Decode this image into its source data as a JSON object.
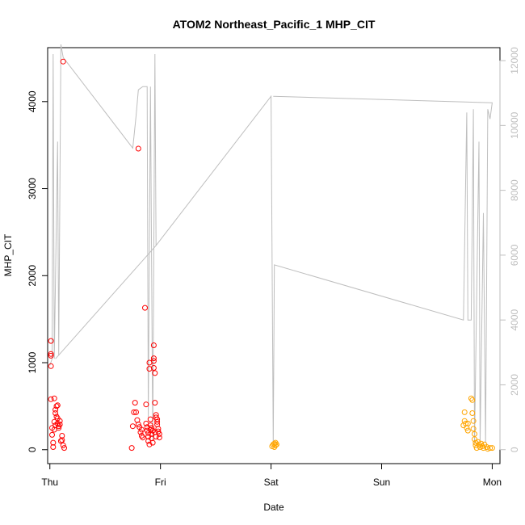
{
  "chart_data": {
    "type": "scatter",
    "title": "ATOM2 Northeast_Pacific_1 MHP_CIT",
    "xlabel": "Date",
    "ylabel": "MHP_CIT",
    "x_ticks": [
      "Thu",
      "Fri",
      "Sat",
      "Sun",
      "Mon"
    ],
    "xlim": [
      -0.02,
      4.07
    ],
    "y_ticks": [
      0,
      1000,
      2000,
      3000,
      4000
    ],
    "ylim": [
      -160,
      4620
    ],
    "y2_ticks": [
      0,
      2000,
      4000,
      6000,
      8000,
      10000,
      12000
    ],
    "y2lim": [
      -430,
      12400
    ],
    "grid": false,
    "legend": "none",
    "colors": {
      "red": "#ff0000",
      "orange": "#ffa500",
      "line": "#bebebe",
      "axis": "#000000",
      "right_axis": "#bebebe"
    },
    "series": [
      {
        "color": "red",
        "points": [
          [
            0.01,
            1250
          ],
          [
            0.01,
            1100
          ],
          [
            0.01,
            1080
          ],
          [
            0.01,
            960
          ],
          [
            0.01,
            580
          ],
          [
            0.02,
            250
          ],
          [
            0.02,
            170
          ],
          [
            0.03,
            80
          ],
          [
            0.03,
            30
          ],
          [
            0.04,
            590
          ],
          [
            0.04,
            320
          ],
          [
            0.04,
            230
          ],
          [
            0.05,
            460
          ],
          [
            0.05,
            420
          ],
          [
            0.05,
            280
          ],
          [
            0.06,
            500
          ],
          [
            0.06,
            380
          ],
          [
            0.07,
            510
          ],
          [
            0.07,
            360
          ],
          [
            0.07,
            300
          ],
          [
            0.08,
            270
          ],
          [
            0.08,
            250
          ],
          [
            0.09,
            330
          ],
          [
            0.09,
            290
          ],
          [
            0.1,
            100
          ],
          [
            0.11,
            160
          ],
          [
            0.11,
            110
          ],
          [
            0.12,
            50
          ],
          [
            0.13,
            20
          ],
          [
            0.12,
            4460
          ],
          [
            0.74,
            20
          ],
          [
            0.75,
            270
          ],
          [
            0.76,
            430
          ],
          [
            0.77,
            540
          ],
          [
            0.78,
            430
          ],
          [
            0.79,
            340
          ],
          [
            0.8,
            290
          ],
          [
            0.81,
            260
          ],
          [
            0.82,
            200
          ],
          [
            0.83,
            230
          ],
          [
            0.83,
            160
          ],
          [
            0.84,
            140
          ],
          [
            0.8,
            3460
          ],
          [
            0.86,
            1630
          ],
          [
            0.87,
            520
          ],
          [
            0.87,
            300
          ],
          [
            0.88,
            260
          ],
          [
            0.88,
            220
          ],
          [
            0.89,
            190
          ],
          [
            0.89,
            150
          ],
          [
            0.89,
            100
          ],
          [
            0.9,
            60
          ],
          [
            0.9,
            1000
          ],
          [
            0.9,
            930
          ],
          [
            0.91,
            280
          ],
          [
            0.91,
            230
          ],
          [
            0.92,
            180
          ],
          [
            0.92,
            130
          ],
          [
            0.93,
            80
          ],
          [
            0.94,
            1050
          ],
          [
            0.94,
            1020
          ],
          [
            0.94,
            940
          ],
          [
            0.95,
            880
          ],
          [
            0.95,
            540
          ],
          [
            0.96,
            400
          ],
          [
            0.96,
            370
          ],
          [
            0.97,
            350
          ],
          [
            0.97,
            320
          ],
          [
            0.97,
            290
          ],
          [
            0.98,
            240
          ],
          [
            0.98,
            210
          ],
          [
            0.99,
            180
          ],
          [
            0.99,
            140
          ],
          [
            0.94,
            1200
          ],
          [
            0.92,
            250
          ],
          [
            0.91,
            350
          ],
          [
            0.93,
            220
          ],
          [
            0.95,
            200
          ],
          [
            0.96,
            150
          ]
        ]
      },
      {
        "color": "orange",
        "points": [
          [
            2.01,
            40
          ],
          [
            2.02,
            60
          ],
          [
            2.03,
            30
          ],
          [
            2.03,
            70
          ],
          [
            2.04,
            50
          ],
          [
            2.04,
            80
          ],
          [
            2.05,
            60
          ],
          [
            3.74,
            280
          ],
          [
            3.75,
            330
          ],
          [
            3.75,
            430
          ],
          [
            3.76,
            300
          ],
          [
            3.77,
            250
          ],
          [
            3.78,
            220
          ],
          [
            3.78,
            300
          ],
          [
            3.81,
            590
          ],
          [
            3.82,
            570
          ],
          [
            3.82,
            420
          ],
          [
            3.83,
            330
          ],
          [
            3.83,
            240
          ],
          [
            3.84,
            180
          ],
          [
            3.84,
            120
          ],
          [
            3.85,
            80
          ],
          [
            3.85,
            50
          ],
          [
            3.86,
            20
          ],
          [
            3.87,
            90
          ],
          [
            3.88,
            60
          ],
          [
            3.89,
            30
          ],
          [
            3.9,
            70
          ],
          [
            3.91,
            40
          ],
          [
            3.92,
            20
          ],
          [
            3.93,
            60
          ],
          [
            3.95,
            30
          ],
          [
            3.96,
            10
          ],
          [
            3.98,
            20
          ],
          [
            4.0,
            20
          ]
        ]
      }
    ],
    "line_series": {
      "color": "line",
      "axis": "right",
      "points": [
        [
          0.0,
          2600
        ],
        [
          0.02,
          2800
        ],
        [
          0.03,
          12200
        ],
        [
          0.04,
          2800
        ],
        [
          0.07,
          9500
        ],
        [
          0.08,
          2900
        ],
        [
          0.1,
          12500
        ],
        [
          0.12,
          12100
        ],
        [
          0.75,
          9300
        ],
        [
          0.78,
          10300
        ],
        [
          0.8,
          11100
        ],
        [
          0.84,
          11200
        ],
        [
          0.88,
          11200
        ],
        [
          0.89,
          1000
        ],
        [
          0.91,
          11200
        ],
        [
          0.93,
          300
        ],
        [
          0.95,
          12200
        ],
        [
          0.96,
          6300
        ],
        [
          0.05,
          2800
        ],
        [
          0.96,
          6300
        ],
        [
          2.0,
          10900
        ],
        [
          2.02,
          200
        ],
        [
          2.03,
          5700
        ],
        [
          3.74,
          4000
        ],
        [
          3.77,
          10400
        ],
        [
          3.78,
          4000
        ],
        [
          3.81,
          4000
        ],
        [
          3.83,
          10500
        ],
        [
          3.84,
          200
        ],
        [
          3.88,
          9500
        ],
        [
          3.89,
          200
        ],
        [
          3.92,
          7300
        ],
        [
          3.94,
          200
        ],
        [
          3.96,
          10500
        ],
        [
          3.98,
          10200
        ],
        [
          4.0,
          10700
        ],
        [
          2.02,
          10900
        ]
      ]
    }
  }
}
